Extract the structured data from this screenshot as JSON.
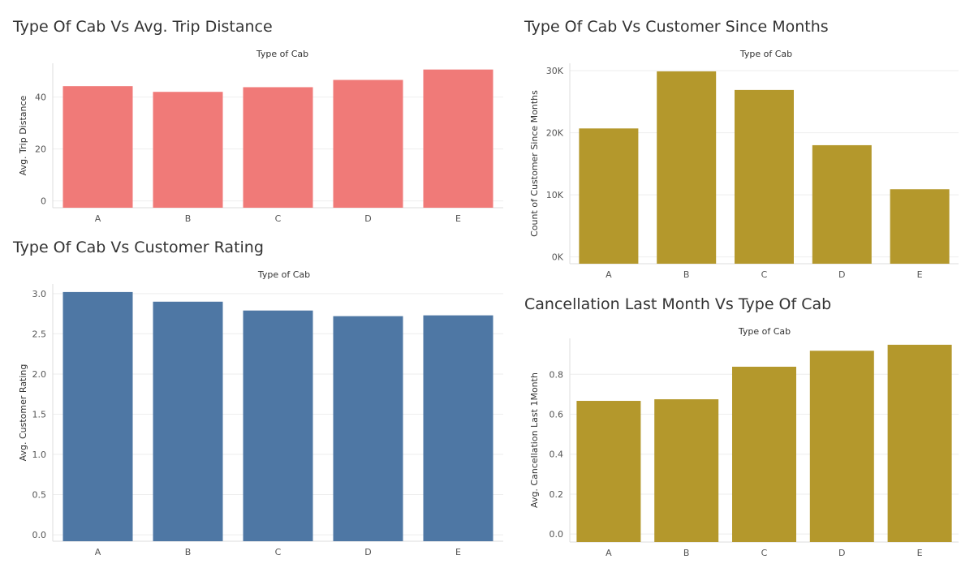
{
  "chart_data": [
    {
      "id": "trip",
      "type": "bar",
      "title": "Type Of Cab Vs Avg. Trip Distance",
      "header": "Type of Cab",
      "categories": [
        "A",
        "B",
        "C",
        "D",
        "E"
      ],
      "values": [
        44.2,
        42.0,
        43.8,
        46.6,
        50.6
      ],
      "ylabel": "Avg. Trip Distance",
      "ylim": [
        -2.6,
        53.0
      ],
      "yticks": [
        0,
        20,
        40
      ],
      "ytick_labels": [
        "0",
        "20",
        "40"
      ],
      "color": "#f07a78"
    },
    {
      "id": "since",
      "type": "bar",
      "title": "Type Of Cab Vs Customer Since Months",
      "header": "Type of Cab",
      "categories": [
        "A",
        "B",
        "C",
        "D",
        "E"
      ],
      "values": [
        20700,
        29900,
        26900,
        18000,
        10900
      ],
      "ylabel": "Count of Customer Since Months",
      "ylim": [
        -1100,
        31200
      ],
      "yticks": [
        0,
        10000,
        20000,
        30000
      ],
      "ytick_labels": [
        "0K",
        "10K",
        "20K",
        "30K"
      ],
      "color": "#b4982c"
    },
    {
      "id": "rating",
      "type": "bar",
      "title": "Type Of Cab Vs Customer Rating",
      "header": "Type of Cab",
      "categories": [
        "A",
        "B",
        "C",
        "D",
        "E"
      ],
      "values": [
        3.02,
        2.9,
        2.79,
        2.72,
        2.73
      ],
      "ylabel": "Avg. Customer Rating",
      "ylim": [
        -0.08,
        3.12
      ],
      "yticks": [
        0.0,
        0.5,
        1.0,
        1.5,
        2.0,
        2.5,
        3.0
      ],
      "ytick_labels": [
        "0.0",
        "0.5",
        "1.0",
        "1.5",
        "2.0",
        "2.5",
        "3.0"
      ],
      "color": "#4e77a4"
    },
    {
      "id": "cancel",
      "type": "bar",
      "title": "Cancellation Last Month Vs Type Of Cab",
      "header": "Type of Cab",
      "categories": [
        "A",
        "B",
        "C",
        "D",
        "E"
      ],
      "values": [
        0.667,
        0.675,
        0.838,
        0.918,
        0.948
      ],
      "ylabel": "Avg. Cancellation Last 1Month",
      "ylim": [
        -0.04,
        0.98
      ],
      "yticks": [
        0.0,
        0.2,
        0.4,
        0.6,
        0.8
      ],
      "ytick_labels": [
        "0.0",
        "0.2",
        "0.4",
        "0.6",
        "0.8"
      ],
      "color": "#b4982c"
    }
  ]
}
